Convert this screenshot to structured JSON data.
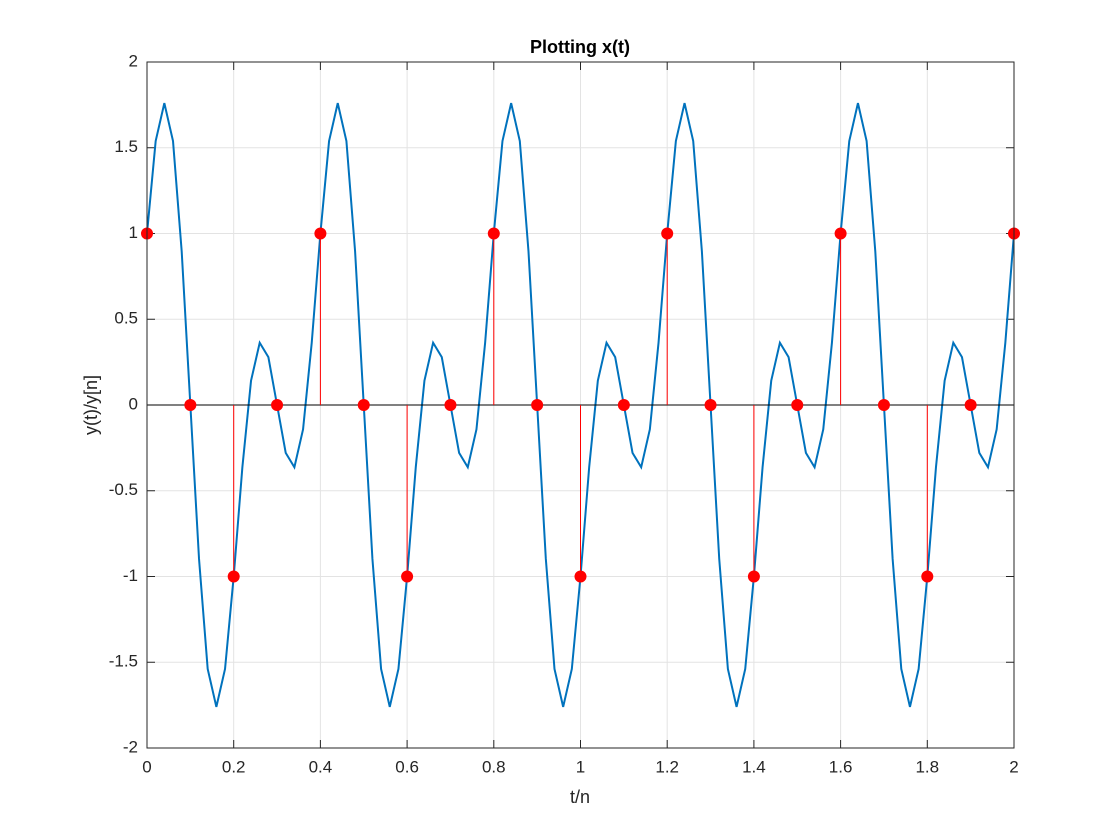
{
  "chart_data": {
    "type": "line",
    "title": "Plotting x(t)",
    "xlabel": "t/n",
    "ylabel": "y(t)/y[n]",
    "xlim": [
      0,
      2
    ],
    "ylim": [
      -2,
      2
    ],
    "xticks": [
      0,
      0.2,
      0.4,
      0.6,
      0.8,
      1,
      1.2,
      1.4,
      1.6,
      1.8,
      2
    ],
    "yticks": [
      -2,
      -1.5,
      -1,
      -0.5,
      0,
      0.5,
      1,
      1.5,
      2
    ],
    "grid": true,
    "series": [
      {
        "type": "line",
        "color": "#0072bd",
        "x": [
          0,
          0.02,
          0.04,
          0.06,
          0.08,
          0.1,
          0.12,
          0.14,
          0.16,
          0.18,
          0.2,
          0.22,
          0.24,
          0.26,
          0.28,
          0.3,
          0.32,
          0.34,
          0.36,
          0.38,
          0.4,
          0.42,
          0.44,
          0.46,
          0.48,
          0.5,
          0.52,
          0.54,
          0.56,
          0.58,
          0.6,
          0.62,
          0.64,
          0.66,
          0.68,
          0.7,
          0.72,
          0.74,
          0.76,
          0.78,
          0.8,
          0.82,
          0.84,
          0.86,
          0.88,
          0.9,
          0.92,
          0.94,
          0.96,
          0.98,
          1,
          1.02,
          1.04,
          1.06,
          1.08,
          1.1,
          1.12,
          1.14,
          1.16,
          1.18,
          1.2,
          1.22,
          1.24,
          1.26,
          1.28,
          1.3,
          1.32,
          1.34,
          1.36,
          1.38,
          1.4,
          1.42,
          1.44,
          1.46,
          1.48,
          1.5,
          1.52,
          1.54,
          1.56,
          1.58,
          1.6,
          1.62,
          1.64,
          1.66,
          1.68,
          1.7,
          1.72,
          1.74,
          1.76,
          1.78,
          1.8,
          1.82,
          1.84,
          1.86,
          1.88,
          1.9,
          1.92,
          1.94,
          1.96,
          1.98,
          2
        ],
        "values": [
          1,
          1.539,
          1.76,
          1.539,
          0.897,
          0,
          -0.897,
          -1.539,
          -1.76,
          -1.539,
          -1,
          -0.363,
          0.142,
          0.363,
          0.279,
          0,
          -0.279,
          -0.363,
          -0.142,
          0.363,
          1,
          1.539,
          1.76,
          1.539,
          0.897,
          0,
          -0.897,
          -1.539,
          -1.76,
          -1.539,
          -1,
          -0.363,
          0.142,
          0.363,
          0.279,
          0,
          -0.279,
          -0.363,
          -0.142,
          0.363,
          1,
          1.539,
          1.76,
          1.539,
          0.897,
          0,
          -0.897,
          -1.539,
          -1.76,
          -1.539,
          -1,
          -0.363,
          0.142,
          0.363,
          0.279,
          0,
          -0.279,
          -0.363,
          -0.142,
          0.363,
          1,
          1.539,
          1.76,
          1.539,
          0.897,
          0,
          -0.897,
          -1.539,
          -1.76,
          -1.539,
          -1,
          -0.363,
          0.142,
          0.363,
          0.279,
          0,
          -0.279,
          -0.363,
          -0.142,
          0.363,
          1,
          1.539,
          1.76,
          1.539,
          0.897,
          0,
          -0.897,
          -1.539,
          -1.76,
          -1.539,
          -1,
          -0.363,
          0.142,
          0.363,
          0.279,
          0,
          -0.279,
          -0.363,
          -0.142,
          0.363,
          1
        ]
      },
      {
        "type": "stem",
        "color": "#ff0000",
        "x": [
          0,
          0.1,
          0.2,
          0.3,
          0.4,
          0.5,
          0.6,
          0.7,
          0.8,
          0.9,
          1,
          1.1,
          1.2,
          1.3,
          1.4,
          1.5,
          1.6,
          1.7,
          1.8,
          1.9,
          2
        ],
        "values": [
          1,
          0,
          -1,
          0,
          1,
          0,
          -1,
          0,
          1,
          0,
          -1,
          0,
          1,
          0,
          -1,
          0,
          1,
          0,
          -1,
          0,
          1
        ]
      }
    ]
  }
}
